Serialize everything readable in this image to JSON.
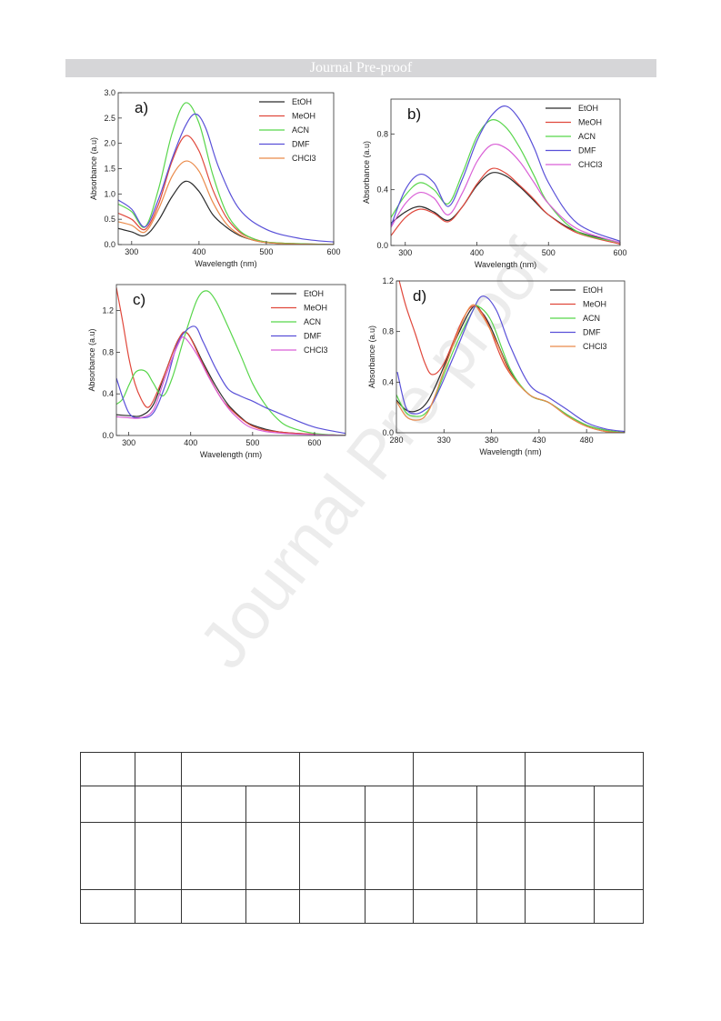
{
  "banner": "Journal Pre-proof",
  "watermark": "Journal Pre-proof",
  "colors": {
    "EtOH": "#2b2b2b",
    "MeOH": "#e0483c",
    "ACN": "#58d64b",
    "DMF": "#5950d8",
    "CHCl3": "#ea8a4a",
    "CHCl3_b": "#d95fd6"
  },
  "chart_data": [
    {
      "type": "line",
      "label": "a)",
      "xlabel": "Wavelength (nm)",
      "ylabel": "Absorbance (a.u)",
      "xlim": [
        280,
        600
      ],
      "ylim": [
        0,
        3.0
      ],
      "xticks": [
        300,
        400,
        500,
        600
      ],
      "yticks": [
        0.0,
        0.5,
        1.0,
        1.5,
        2.0,
        2.5,
        3.0
      ],
      "ytick_labels": [
        "0.0",
        "0.5",
        "1.0",
        "1.5",
        "2.0",
        "2.5",
        "3.0"
      ],
      "legend": [
        "EtOH",
        "MeOH",
        "ACN",
        "DMF",
        "CHCl3"
      ],
      "legend_display": [
        "EtOH",
        "MeOH",
        "ACN",
        "DMF",
        "CHCl3"
      ],
      "series": [
        {
          "name": "EtOH",
          "color": "#2b2b2b",
          "x": [
            280,
            300,
            320,
            340,
            360,
            380,
            400,
            420,
            440,
            460,
            480,
            500,
            540,
            600
          ],
          "y": [
            0.32,
            0.25,
            0.18,
            0.48,
            0.95,
            1.25,
            1.05,
            0.6,
            0.35,
            0.18,
            0.09,
            0.04,
            0.01,
            0.0
          ]
        },
        {
          "name": "MeOH",
          "color": "#e0483c",
          "x": [
            280,
            300,
            320,
            340,
            360,
            380,
            400,
            420,
            440,
            460,
            480,
            500,
            540,
            600
          ],
          "y": [
            0.62,
            0.5,
            0.3,
            0.8,
            1.65,
            2.15,
            1.85,
            1.1,
            0.55,
            0.25,
            0.12,
            0.05,
            0.02,
            0.0
          ]
        },
        {
          "name": "ACN",
          "color": "#58d64b",
          "x": [
            280,
            300,
            320,
            340,
            360,
            380,
            400,
            420,
            440,
            460,
            480,
            500,
            540,
            600
          ],
          "y": [
            0.8,
            0.65,
            0.35,
            1.1,
            2.2,
            2.8,
            2.4,
            1.4,
            0.65,
            0.28,
            0.12,
            0.05,
            0.02,
            0.0
          ]
        },
        {
          "name": "DMF",
          "color": "#5950d8",
          "x": [
            280,
            300,
            320,
            340,
            360,
            380,
            395,
            410,
            430,
            460,
            500,
            550,
            600
          ],
          "y": [
            0.88,
            0.7,
            0.35,
            0.9,
            1.7,
            2.35,
            2.58,
            2.3,
            1.5,
            0.7,
            0.3,
            0.12,
            0.05
          ]
        },
        {
          "name": "CHCl3",
          "color": "#ea8a4a",
          "x": [
            280,
            300,
            320,
            340,
            360,
            380,
            400,
            420,
            440,
            460,
            480,
            500,
            540,
            600
          ],
          "y": [
            0.45,
            0.38,
            0.25,
            0.7,
            1.35,
            1.65,
            1.45,
            0.85,
            0.42,
            0.2,
            0.09,
            0.04,
            0.01,
            0.0
          ]
        }
      ]
    },
    {
      "type": "line",
      "label": "b)",
      "xlabel": "Wavelength (nm)",
      "ylabel": "Absorbance (a.u)",
      "xlim": [
        280,
        600
      ],
      "ylim": [
        0,
        1.05
      ],
      "xticks": [
        300,
        400,
        500,
        600
      ],
      "yticks": [
        0.0,
        0.4,
        0.8
      ],
      "ytick_labels": [
        "0.0",
        "0.4",
        "0.8"
      ],
      "legend": [
        "EtOH",
        "MeOH",
        "ACN",
        "DMF",
        "CHCl3"
      ],
      "legend_display": [
        "EtOH",
        "MeOH",
        "ACN",
        "DMF",
        "CHCl3"
      ],
      "series": [
        {
          "name": "EtOH",
          "color": "#2b2b2b",
          "x": [
            280,
            300,
            320,
            340,
            360,
            380,
            400,
            420,
            440,
            460,
            480,
            500,
            540,
            600
          ],
          "y": [
            0.16,
            0.24,
            0.28,
            0.24,
            0.18,
            0.28,
            0.43,
            0.52,
            0.5,
            0.42,
            0.32,
            0.22,
            0.1,
            0.02
          ]
        },
        {
          "name": "MeOH",
          "color": "#e0483c",
          "x": [
            280,
            300,
            320,
            340,
            360,
            380,
            400,
            420,
            440,
            460,
            480,
            500,
            540,
            600
          ],
          "y": [
            0.07,
            0.2,
            0.26,
            0.23,
            0.17,
            0.28,
            0.44,
            0.55,
            0.52,
            0.43,
            0.33,
            0.22,
            0.09,
            0.01
          ]
        },
        {
          "name": "ACN",
          "color": "#58d64b",
          "x": [
            280,
            300,
            320,
            340,
            360,
            380,
            400,
            420,
            440,
            460,
            480,
            500,
            540,
            600
          ],
          "y": [
            0.2,
            0.36,
            0.45,
            0.4,
            0.3,
            0.52,
            0.78,
            0.9,
            0.85,
            0.7,
            0.5,
            0.3,
            0.1,
            0.02
          ]
        },
        {
          "name": "DMF",
          "color": "#5950d8",
          "x": [
            280,
            300,
            320,
            340,
            360,
            380,
            400,
            420,
            440,
            460,
            480,
            500,
            540,
            600
          ],
          "y": [
            0.14,
            0.4,
            0.51,
            0.45,
            0.28,
            0.48,
            0.75,
            0.93,
            1.0,
            0.9,
            0.7,
            0.45,
            0.16,
            0.03
          ]
        },
        {
          "name": "CHCl3",
          "color": "#d95fd6",
          "x": [
            280,
            300,
            320,
            340,
            360,
            380,
            400,
            420,
            440,
            460,
            480,
            500,
            540,
            600
          ],
          "y": [
            0.13,
            0.3,
            0.38,
            0.34,
            0.22,
            0.38,
            0.6,
            0.72,
            0.7,
            0.6,
            0.45,
            0.3,
            0.12,
            0.02
          ]
        }
      ]
    },
    {
      "type": "line",
      "label": "c)",
      "xlabel": "Wavelength (nm)",
      "ylabel": "Absorbance (a.u)",
      "xlim": [
        280,
        650
      ],
      "ylim": [
        0,
        1.45
      ],
      "xticks": [
        300,
        400,
        500,
        600
      ],
      "yticks": [
        0.0,
        0.4,
        0.8,
        1.2
      ],
      "ytick_labels": [
        "0.0",
        "0.4",
        "0.8",
        "1.2"
      ],
      "legend": [
        "EtOH",
        "MeOH",
        "ACN",
        "DMF",
        "CHCl3"
      ],
      "legend_display": [
        "EtOH",
        "MeOH",
        "ACN",
        "DMF",
        "CHCl3"
      ],
      "series": [
        {
          "name": "EtOH",
          "color": "#2b2b2b",
          "x": [
            280,
            300,
            320,
            340,
            360,
            380,
            395,
            420,
            440,
            460,
            480,
            500,
            550,
            650
          ],
          "y": [
            0.2,
            0.19,
            0.19,
            0.3,
            0.62,
            0.92,
            0.98,
            0.7,
            0.48,
            0.3,
            0.18,
            0.1,
            0.03,
            0.0
          ]
        },
        {
          "name": "MeOH",
          "color": "#e0483c",
          "x": [
            280,
            290,
            300,
            310,
            320,
            330,
            340,
            360,
            380,
            395,
            420,
            440,
            460,
            500,
            550,
            650
          ],
          "y": [
            1.42,
            1.1,
            0.75,
            0.5,
            0.35,
            0.27,
            0.34,
            0.62,
            0.92,
            0.98,
            0.68,
            0.45,
            0.28,
            0.09,
            0.03,
            0.0
          ]
        },
        {
          "name": "ACN",
          "color": "#58d64b",
          "x": [
            280,
            290,
            300,
            310,
            320,
            330,
            340,
            355,
            370,
            390,
            410,
            425,
            440,
            460,
            480,
            500,
            520,
            540,
            560,
            600,
            650
          ],
          "y": [
            0.3,
            0.35,
            0.48,
            0.6,
            0.63,
            0.6,
            0.5,
            0.38,
            0.55,
            0.95,
            1.3,
            1.39,
            1.3,
            1.05,
            0.78,
            0.5,
            0.3,
            0.16,
            0.08,
            0.02,
            0.0
          ]
        },
        {
          "name": "DMF",
          "color": "#5950d8",
          "x": [
            280,
            300,
            320,
            340,
            360,
            380,
            405,
            420,
            440,
            460,
            480,
            500,
            520,
            540,
            560,
            600,
            650
          ],
          "y": [
            0.55,
            0.22,
            0.17,
            0.22,
            0.5,
            0.9,
            1.05,
            0.9,
            0.65,
            0.45,
            0.38,
            0.33,
            0.27,
            0.22,
            0.17,
            0.08,
            0.02
          ]
        },
        {
          "name": "CHCl3",
          "color": "#d95fd6",
          "x": [
            280,
            300,
            320,
            340,
            360,
            380,
            390,
            410,
            430,
            450,
            470,
            500,
            550,
            650
          ],
          "y": [
            0.18,
            0.17,
            0.17,
            0.25,
            0.58,
            0.88,
            0.94,
            0.78,
            0.55,
            0.35,
            0.2,
            0.07,
            0.02,
            0.0
          ]
        }
      ]
    },
    {
      "type": "line",
      "label": "d)",
      "xlabel": "Wavelength (nm)",
      "ylabel": "Absorbance (a.u)",
      "xlim": [
        280,
        520
      ],
      "ylim": [
        0,
        1.2
      ],
      "xticks": [
        280,
        330,
        380,
        430,
        480
      ],
      "yticks": [
        0.0,
        0.4,
        0.8,
        1.2
      ],
      "ytick_labels": [
        "0.0",
        "0.4",
        "0.8",
        "1.2"
      ],
      "legend": [
        "EtOH",
        "MeOH",
        "ACN",
        "DMF",
        "CHCl3"
      ],
      "legend_display": [
        "EtOH",
        "MeOH",
        "ACN",
        "DMF",
        "CHCl3"
      ],
      "series": [
        {
          "name": "EtOH",
          "color": "#2b2b2b",
          "x": [
            280,
            290,
            300,
            310,
            320,
            340,
            360,
            370,
            380,
            400,
            420,
            440,
            460,
            480,
            500,
            520
          ],
          "y": [
            0.26,
            0.18,
            0.17,
            0.22,
            0.35,
            0.7,
            0.99,
            0.95,
            0.82,
            0.48,
            0.3,
            0.24,
            0.14,
            0.06,
            0.02,
            0.0
          ]
        },
        {
          "name": "MeOH",
          "color": "#e0483c",
          "x": [
            283,
            290,
            300,
            310,
            318,
            330,
            350,
            362,
            375,
            395,
            420,
            440,
            460,
            480,
            500,
            520
          ],
          "y": [
            1.2,
            1.0,
            0.78,
            0.55,
            0.46,
            0.55,
            0.9,
            1.0,
            0.88,
            0.52,
            0.3,
            0.24,
            0.13,
            0.05,
            0.01,
            0.0
          ]
        },
        {
          "name": "ACN",
          "color": "#58d64b",
          "x": [
            280,
            290,
            300,
            310,
            320,
            340,
            360,
            366,
            380,
            400,
            420,
            440,
            460,
            480,
            500,
            520
          ],
          "y": [
            0.3,
            0.16,
            0.13,
            0.15,
            0.27,
            0.65,
            0.96,
            1.0,
            0.88,
            0.5,
            0.3,
            0.24,
            0.14,
            0.06,
            0.02,
            0.0
          ]
        },
        {
          "name": "DMF",
          "color": "#5950d8",
          "x": [
            281,
            290,
            300,
            310,
            320,
            340,
            360,
            371,
            385,
            400,
            420,
            440,
            460,
            480,
            500,
            520
          ],
          "y": [
            0.48,
            0.2,
            0.15,
            0.18,
            0.26,
            0.6,
            0.96,
            1.08,
            0.97,
            0.68,
            0.38,
            0.28,
            0.18,
            0.08,
            0.03,
            0.01
          ]
        },
        {
          "name": "CHCl3",
          "color": "#ea8a4a",
          "x": [
            280,
            290,
            300,
            310,
            320,
            340,
            358,
            370,
            385,
            400,
            420,
            440,
            460,
            480,
            500,
            520
          ],
          "y": [
            0.25,
            0.13,
            0.1,
            0.13,
            0.28,
            0.7,
            1.0,
            0.93,
            0.72,
            0.47,
            0.3,
            0.24,
            0.13,
            0.05,
            0.01,
            0.0
          ]
        }
      ]
    }
  ],
  "table": {
    "rows": [
      [
        "",
        "",
        "",
        "",
        "",
        "",
        "",
        "",
        "",
        "",
        "",
        "",
        ""
      ]
    ]
  }
}
